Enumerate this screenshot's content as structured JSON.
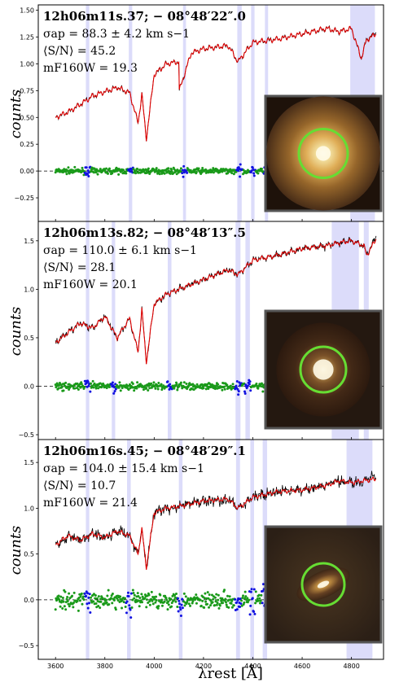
{
  "figure": {
    "ylabel": "counts",
    "xlabel": "λrest [Å]"
  },
  "colors": {
    "observed": "#000000",
    "model": "#e00000",
    "residual_good": "#1a9a1a",
    "residual_masked": "#1010e0",
    "masked_band": "#dcdcfa",
    "aperture": "#66dd33",
    "inset_border": "#555555"
  },
  "chart_data": [
    {
      "type": "line",
      "title": "12h06m11s.37; − 08°48′22″.0",
      "annotations": [
        "σap = 88.3 ± 4.2 km s−1",
        "⟨S/N⟩ = 45.2",
        "mF160W = 19.3"
      ],
      "ylabel": "counts",
      "xlim": [
        3530,
        4930
      ],
      "ylim": [
        -0.47,
        1.55
      ],
      "yticks": [
        1.5,
        1.25,
        1.0,
        0.75,
        0.5,
        0.25,
        0.0,
        -0.25
      ],
      "ytick_labels": [
        "1.50",
        "1.25",
        "1.00",
        "0.75",
        "0.50",
        "0.25",
        "0.00",
        "−0.25"
      ],
      "masked_regions": [
        [
          3723,
          3737
        ],
        [
          3897,
          3911
        ],
        [
          4117,
          4129
        ],
        [
          4337,
          4355
        ],
        [
          4393,
          4407
        ],
        [
          4449,
          4462
        ],
        [
          4795,
          4895
        ]
      ],
      "series": [
        {
          "role": "observed",
          "x": [
            3600,
            3650,
            3700,
            3750,
            3800,
            3850,
            3900,
            3935,
            3950,
            3968,
            4000,
            4050,
            4100,
            4102,
            4150,
            4200,
            4300,
            4340,
            4400,
            4500,
            4600,
            4700,
            4750,
            4800,
            4840,
            4860,
            4900
          ],
          "y": [
            0.5,
            0.55,
            0.62,
            0.7,
            0.74,
            0.78,
            0.73,
            0.45,
            0.72,
            0.3,
            0.9,
            1.0,
            1.02,
            0.75,
            1.1,
            1.14,
            1.17,
            1.02,
            1.2,
            1.23,
            1.28,
            1.33,
            1.3,
            1.33,
            1.05,
            1.22,
            1.3
          ]
        },
        {
          "role": "model",
          "x": [
            3600,
            3650,
            3700,
            3750,
            3800,
            3850,
            3900,
            3935,
            3950,
            3968,
            4000,
            4050,
            4100,
            4102,
            4150,
            4200,
            4300,
            4340,
            4400,
            4500,
            4600,
            4700,
            4750,
            4800,
            4840,
            4860,
            4900
          ],
          "y": [
            0.5,
            0.55,
            0.62,
            0.7,
            0.74,
            0.78,
            0.73,
            0.45,
            0.72,
            0.3,
            0.9,
            1.0,
            1.02,
            0.75,
            1.1,
            1.14,
            1.17,
            1.02,
            1.2,
            1.23,
            1.28,
            1.33,
            1.3,
            1.33,
            1.05,
            1.22,
            1.28
          ]
        }
      ],
      "residual_scatter": 0.025,
      "inset": {
        "type": "image",
        "galaxy": "compact round elliptical, bright core"
      }
    },
    {
      "type": "line",
      "title": "12h06m13s.82; − 08°48′13″.5",
      "annotations": [
        "σap = 110.0 ± 6.1 km s−1",
        "⟨S/N⟩ = 28.1",
        "mF160W = 20.1"
      ],
      "ylabel": "counts",
      "xlim": [
        3530,
        4930
      ],
      "ylim": [
        -0.55,
        1.7
      ],
      "yticks": [
        1.5,
        1.0,
        0.5,
        0.0,
        -0.5
      ],
      "ytick_labels": [
        "1.5",
        "1.0",
        "0.5",
        "0.0",
        "−0.5"
      ],
      "masked_regions": [
        [
          3723,
          3737
        ],
        [
          3828,
          3842
        ],
        [
          4055,
          4070
        ],
        [
          4330,
          4350
        ],
        [
          4370,
          4388
        ],
        [
          4720,
          4830
        ],
        [
          4850,
          4870
        ]
      ],
      "series": [
        {
          "role": "observed",
          "x": [
            3600,
            3650,
            3700,
            3750,
            3800,
            3850,
            3900,
            3935,
            3950,
            3968,
            4000,
            4050,
            4100,
            4150,
            4200,
            4300,
            4340,
            4400,
            4500,
            4600,
            4700,
            4750,
            4800,
            4850,
            4862,
            4900
          ],
          "y": [
            0.45,
            0.55,
            0.65,
            0.6,
            0.72,
            0.5,
            0.7,
            0.35,
            0.8,
            0.25,
            0.85,
            0.95,
            1.0,
            1.05,
            1.1,
            1.2,
            1.15,
            1.3,
            1.35,
            1.42,
            1.45,
            1.48,
            1.5,
            1.45,
            1.35,
            1.55
          ]
        },
        {
          "role": "model",
          "x": [
            3600,
            3650,
            3700,
            3750,
            3800,
            3850,
            3900,
            3935,
            3950,
            3968,
            4000,
            4050,
            4100,
            4150,
            4200,
            4300,
            4340,
            4400,
            4500,
            4600,
            4700,
            4750,
            4800,
            4850,
            4862,
            4900
          ],
          "y": [
            0.45,
            0.55,
            0.65,
            0.6,
            0.72,
            0.5,
            0.7,
            0.35,
            0.8,
            0.25,
            0.85,
            0.95,
            1.0,
            1.05,
            1.1,
            1.2,
            1.15,
            1.3,
            1.35,
            1.42,
            1.45,
            1.48,
            1.5,
            1.45,
            1.35,
            1.52
          ]
        }
      ],
      "residual_scatter": 0.04,
      "inset": {
        "type": "image",
        "galaxy": "round galaxy with faint halo"
      }
    },
    {
      "type": "line",
      "title": "12h06m16s.45; − 08°48′29″.1",
      "annotations": [
        "σap = 104.0 ± 15.4 km s−1",
        "⟨S/N⟩ = 10.7",
        "mF160W = 21.4"
      ],
      "ylabel": "counts",
      "xlabel": "λrest [Å]",
      "xlim": [
        3530,
        4930
      ],
      "ylim": [
        -0.65,
        1.75
      ],
      "yticks": [
        1.5,
        1.0,
        0.5,
        0.0,
        -0.5
      ],
      "ytick_labels": [
        "1.5",
        "1.0",
        "0.5",
        "0.0",
        "−0.5"
      ],
      "xticks": [
        3600,
        3800,
        4000,
        4200,
        4400,
        4600,
        4800
      ],
      "xtick_labels": [
        "3600",
        "3800",
        "4000",
        "4200",
        "4400",
        "4600",
        "4800"
      ],
      "masked_regions": [
        [
          3723,
          3737
        ],
        [
          3890,
          3905
        ],
        [
          4100,
          4115
        ],
        [
          4332,
          4348
        ],
        [
          4390,
          4405
        ],
        [
          4440,
          4458
        ],
        [
          4780,
          4885
        ]
      ],
      "series": [
        {
          "role": "observed",
          "x": [
            3600,
            3650,
            3700,
            3750,
            3800,
            3850,
            3900,
            3935,
            3950,
            3968,
            4000,
            4050,
            4100,
            4150,
            4200,
            4300,
            4340,
            4400,
            4500,
            4600,
            4700,
            4750,
            4800,
            4850,
            4900
          ],
          "y": [
            0.6,
            0.7,
            0.65,
            0.72,
            0.68,
            0.75,
            0.7,
            0.5,
            0.78,
            0.35,
            0.95,
            1.0,
            1.02,
            1.05,
            1.08,
            1.1,
            1.0,
            1.12,
            1.18,
            1.2,
            1.25,
            1.3,
            1.28,
            1.3,
            1.35
          ]
        },
        {
          "role": "model",
          "x": [
            3600,
            3650,
            3700,
            3750,
            3800,
            3850,
            3900,
            3935,
            3950,
            3968,
            4000,
            4050,
            4100,
            4150,
            4200,
            4300,
            4340,
            4400,
            4500,
            4600,
            4700,
            4750,
            4800,
            4850,
            4900
          ],
          "y": [
            0.6,
            0.7,
            0.65,
            0.72,
            0.68,
            0.75,
            0.7,
            0.5,
            0.78,
            0.35,
            0.95,
            1.0,
            1.02,
            1.05,
            1.08,
            1.1,
            1.0,
            1.12,
            1.18,
            1.2,
            1.25,
            1.3,
            1.28,
            1.3,
            1.32
          ]
        }
      ],
      "residual_scatter": 0.09,
      "inset": {
        "type": "image",
        "galaxy": "elongated disky galaxy"
      }
    }
  ]
}
